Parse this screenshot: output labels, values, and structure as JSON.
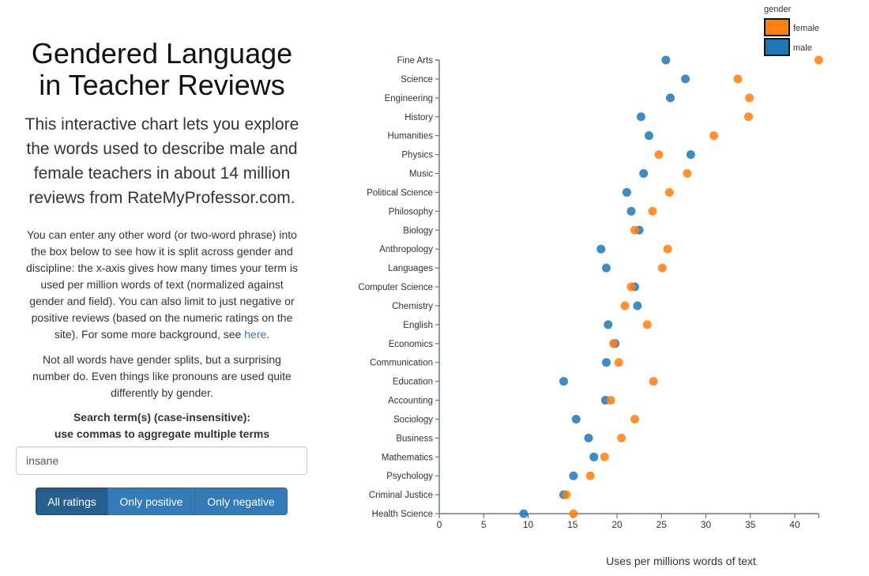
{
  "left_panel": {
    "title": "Gendered Language in Teacher Reviews",
    "title_line1": "Gendered Language",
    "title_line2": "in Teacher Reviews",
    "intro_lines": [
      "This interactive chart lets you explore",
      "the words used to describe male and",
      "female teachers in about 14 million",
      "reviews from RateMyProfessor.com."
    ],
    "paragraph1_lines": [
      "You can enter any other word (or two-word phrase) into",
      "the box below to see how it is split across gender and",
      "discipline: the x-axis gives how many times your term is",
      "used per million words of text (normalized against",
      "gender and field). You can also limit to just negative or",
      "positive reviews (based on the numeric ratings on the"
    ],
    "paragraph1_last_prefix": "site). For some more background, see ",
    "paragraph1_link": "here",
    "paragraph1_last_suffix": ".",
    "paragraph2_lines": [
      "Not all words have gender splits, but a surprising",
      "number do. Even things like pronouns are used quite",
      "differently by gender."
    ],
    "search_label_line1": "Search term(s) (case-insensitive):",
    "search_label_line2": "use commas to aggregate multiple terms",
    "search_value": "insane",
    "buttons": [
      {
        "label": "All ratings",
        "active": true
      },
      {
        "label": "Only positive",
        "active": false
      },
      {
        "label": "Only negative",
        "active": false
      }
    ],
    "link_color": "#337ab7",
    "button_color": "#337ab7",
    "button_active_color": "#286090"
  },
  "chart_data": {
    "type": "scatter",
    "subtype": "dot-plot",
    "title": "",
    "xlabel": "Uses per millions words of text",
    "ylabel": "",
    "xlim": [
      0,
      42.7
    ],
    "xticks": [
      0,
      5,
      10,
      15,
      20,
      25,
      30,
      35,
      40
    ],
    "grid": false,
    "legend": {
      "title": "gender",
      "position": "top-right",
      "entries": [
        {
          "name": "female",
          "color": "#ff7f0e"
        },
        {
          "name": "male",
          "color": "#1f77b4"
        }
      ]
    },
    "categories": [
      "Fine Arts",
      "Science",
      "Engineering",
      "History",
      "Humanities",
      "Physics",
      "Music",
      "Political Science",
      "Philosophy",
      "Biology",
      "Anthropology",
      "Languages",
      "Computer Science",
      "Chemistry",
      "English",
      "Economics",
      "Communication",
      "Education",
      "Accounting",
      "Sociology",
      "Business",
      "Mathematics",
      "Psychology",
      "Criminal Justice",
      "Health Science"
    ],
    "series": [
      {
        "name": "female",
        "color": "#ff7f0e",
        "values": [
          42.7,
          33.6,
          34.9,
          34.8,
          30.9,
          24.7,
          27.9,
          25.9,
          24.0,
          22.0,
          25.7,
          25.1,
          21.6,
          20.9,
          23.4,
          19.6,
          20.2,
          24.1,
          19.3,
          22.0,
          20.5,
          18.6,
          17.0,
          14.3,
          15.1
        ]
      },
      {
        "name": "male",
        "color": "#1f77b4",
        "values": [
          25.5,
          27.7,
          26.0,
          22.7,
          23.6,
          28.3,
          23.0,
          21.1,
          21.6,
          22.5,
          18.2,
          18.8,
          22.0,
          22.3,
          19.0,
          19.8,
          18.8,
          14.0,
          18.7,
          15.4,
          16.8,
          17.4,
          15.1,
          14.0,
          9.5
        ]
      }
    ]
  }
}
